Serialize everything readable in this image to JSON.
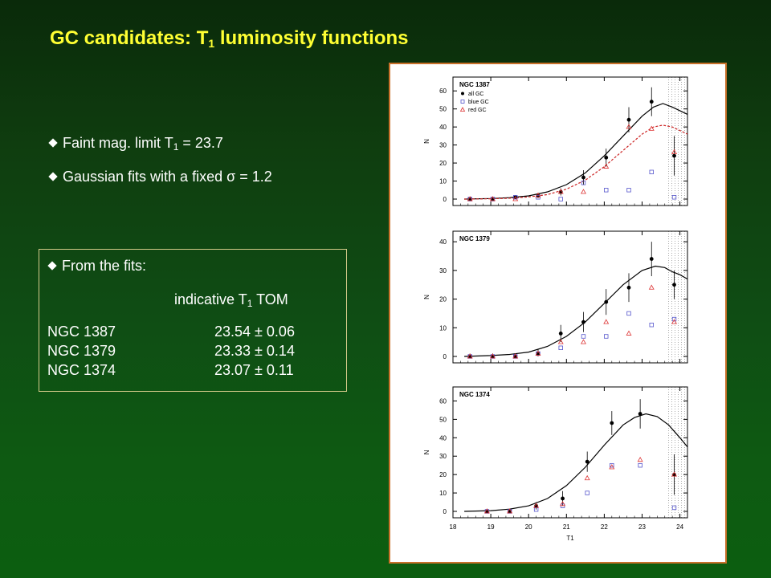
{
  "slide": {
    "title_main": "GC candidates:  T",
    "title_sub": "1",
    "title_tail": " luminosity functions",
    "bullet1_pre": "Faint mag.  limit T",
    "bullet1_sub": "1",
    "bullet1_post": " = 23.7",
    "bullet2": "Gaussian fits with a fixed σ = 1.2",
    "box": {
      "heading": "From the fits:",
      "col_pre": "indicative T",
      "col_sub": "1",
      "col_post": " TOM",
      "rows": [
        {
          "name": "NGC 1387",
          "value": "23.54 ± 0.06"
        },
        {
          "name": "NGC 1379",
          "value": "23.33 ± 0.14"
        },
        {
          "name": "NGC 1374",
          "value": "23.07 ± 0.11"
        }
      ]
    }
  },
  "colors": {
    "title": "#ffff33",
    "panel_border": "#c8702a",
    "blue_gc": "#5555cc",
    "red_gc": "#dd3333",
    "red_fit": "#cc2222"
  },
  "chart_data": [
    {
      "type": "scatter",
      "title": "NGC 1387",
      "xlabel": "T1",
      "ylabel": "N",
      "xlim": [
        18,
        24.2
      ],
      "ylim": [
        0,
        65
      ],
      "yticks": [
        0,
        10,
        20,
        30,
        40,
        50,
        60
      ],
      "xticks": [
        18,
        19,
        20,
        21,
        22,
        23,
        24
      ],
      "legend": [
        "all GC",
        "blue GC",
        "red GC"
      ],
      "legend_position": "top-left",
      "limit_band": [
        23.7,
        24.2
      ],
      "x": [
        18.45,
        19.05,
        19.65,
        20.25,
        20.85,
        21.45,
        22.05,
        22.65,
        23.25,
        23.85
      ],
      "series": [
        {
          "name": "all GC",
          "marker": "filled-circle",
          "values": [
            0,
            0,
            1,
            2,
            4,
            12,
            23,
            44,
            54,
            24
          ],
          "errors": [
            1,
            1,
            1,
            1.5,
            2,
            4,
            5,
            7,
            8,
            11
          ]
        },
        {
          "name": "blue GC",
          "marker": "open-square",
          "values": [
            0,
            0,
            1,
            1,
            0,
            9,
            5,
            5,
            15,
            1
          ]
        },
        {
          "name": "red GC",
          "marker": "open-triangle",
          "values": [
            0,
            0,
            0,
            2,
            4,
            4,
            18,
            40,
            39,
            26
          ]
        }
      ],
      "fits": [
        {
          "name": "all GC fit",
          "style": "solid",
          "x": [
            18.3,
            19.0,
            19.5,
            20.0,
            20.5,
            21.0,
            21.5,
            22.0,
            22.5,
            23.0,
            23.3,
            23.55,
            23.8,
            24.0,
            24.2
          ],
          "y": [
            0,
            0.3,
            0.8,
            1.8,
            4,
            8,
            14.5,
            24,
            35,
            46,
            51,
            53,
            51,
            49,
            47
          ]
        },
        {
          "name": "red GC fit",
          "style": "dashed",
          "x": [
            18.3,
            19.0,
            19.5,
            20.0,
            20.5,
            21.0,
            21.5,
            22.0,
            22.5,
            23.0,
            23.3,
            23.55,
            23.8,
            24.0,
            24.2
          ],
          "y": [
            0,
            0.2,
            0.5,
            1.2,
            2.5,
            5.5,
            10.5,
            18,
            27,
            36,
            40,
            41,
            40,
            38,
            36
          ]
        }
      ]
    },
    {
      "type": "scatter",
      "title": "NGC 1379",
      "xlabel": "T1",
      "ylabel": "N",
      "xlim": [
        18,
        24.2
      ],
      "ylim": [
        0,
        42
      ],
      "yticks": [
        0,
        10,
        20,
        30,
        40
      ],
      "xticks": [
        18,
        19,
        20,
        21,
        22,
        23,
        24
      ],
      "limit_band": [
        23.7,
        24.2
      ],
      "x": [
        18.45,
        19.05,
        19.65,
        20.25,
        20.85,
        21.45,
        22.05,
        22.65,
        23.25,
        23.85
      ],
      "series": [
        {
          "name": "all GC",
          "marker": "filled-circle",
          "values": [
            0,
            0,
            0,
            1,
            8,
            12,
            19,
            24,
            34,
            25
          ],
          "errors": [
            1,
            1,
            1,
            1.5,
            3,
            3.5,
            4.5,
            5,
            6,
            5
          ]
        },
        {
          "name": "blue GC",
          "marker": "open-square",
          "values": [
            0,
            0,
            0,
            1,
            3,
            7,
            7,
            15,
            11,
            13
          ]
        },
        {
          "name": "red GC",
          "marker": "open-triangle",
          "values": [
            0,
            0,
            0,
            1,
            5,
            5,
            12,
            8,
            24,
            12
          ]
        }
      ],
      "fits": [
        {
          "name": "all GC fit",
          "style": "solid",
          "x": [
            18.3,
            19.0,
            19.5,
            20.0,
            20.5,
            21.0,
            21.5,
            22.0,
            22.5,
            23.0,
            23.35,
            23.6,
            23.8,
            24.0,
            24.2
          ],
          "y": [
            0,
            0.3,
            0.7,
            1.5,
            3.5,
            7,
            12,
            18.5,
            25,
            30,
            31.5,
            31,
            29.5,
            28.5,
            27
          ]
        }
      ]
    },
    {
      "type": "scatter",
      "title": "NGC 1374",
      "xlabel": "T1",
      "ylabel": "N",
      "xlim": [
        18,
        24.2
      ],
      "ylim": [
        0,
        65
      ],
      "yticks": [
        0,
        10,
        20,
        30,
        40,
        50,
        60
      ],
      "xticks": [
        18,
        19,
        20,
        21,
        22,
        23,
        24
      ],
      "limit_band": [
        23.7,
        24.2
      ],
      "x": [
        18.45,
        19.05,
        19.65,
        20.25,
        20.85,
        21.45,
        22.05,
        22.65,
        23.25,
        23.85
      ],
      "series": [
        {
          "name": "all GC",
          "marker": "filled-circle",
          "values": [
            0,
            0,
            3,
            7,
            27,
            48,
            53,
            20
          ],
          "x": [
            18.9,
            19.5,
            20.2,
            20.9,
            21.55,
            22.2,
            22.95,
            23.85
          ],
          "errors": [
            1,
            1,
            2,
            4,
            5.5,
            6.5,
            8,
            11
          ]
        },
        {
          "name": "blue GC",
          "marker": "open-square",
          "values": [
            0,
            0,
            1,
            3,
            10,
            25,
            25,
            2
          ],
          "x": [
            18.9,
            19.5,
            20.2,
            20.9,
            21.55,
            22.2,
            22.95,
            23.85
          ]
        },
        {
          "name": "red GC",
          "marker": "open-triangle",
          "values": [
            0,
            0,
            3,
            4,
            18,
            24,
            28,
            20
          ],
          "x": [
            18.9,
            19.5,
            20.2,
            20.9,
            21.55,
            22.2,
            22.95,
            23.85
          ]
        }
      ],
      "fits": [
        {
          "name": "all GC fit",
          "style": "solid",
          "x": [
            18.3,
            19.0,
            19.5,
            20.0,
            20.5,
            21.0,
            21.5,
            22.0,
            22.5,
            22.8,
            23.1,
            23.4,
            23.7,
            24.0,
            24.2
          ],
          "y": [
            0,
            0.4,
            1.2,
            3,
            7,
            14,
            24,
            36,
            47,
            51,
            53,
            51.5,
            47,
            40,
            35
          ]
        }
      ]
    }
  ]
}
